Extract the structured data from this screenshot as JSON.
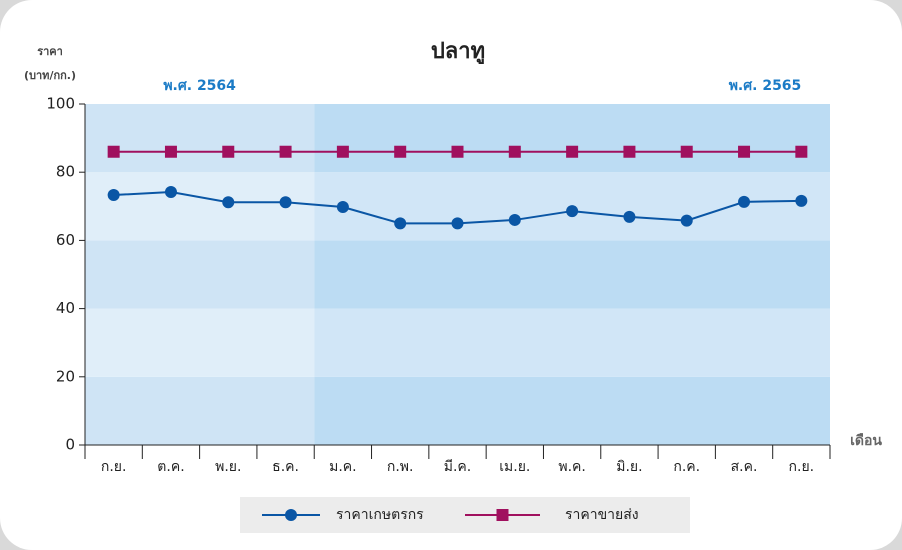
{
  "chart_data": {
    "type": "line",
    "title": "ปลาทู",
    "y_label": [
      "ราคา",
      "(บาท/กก.)"
    ],
    "x_label": "เดือน",
    "annotations": [
      "พ.ศ. 2564",
      "พ.ศ. 2565"
    ],
    "categories": [
      "ก.ย.",
      "ต.ค.",
      "พ.ย.",
      "ธ.ค.",
      "ม.ค.",
      "ก.พ.",
      "มี.ค.",
      "เม.ย.",
      "พ.ค.",
      "มิ.ย.",
      "ก.ค.",
      "ส.ค.",
      "ก.ย."
    ],
    "series": [
      {
        "name": "ราคาเกษตรกร",
        "color": "#0a56a5",
        "marker": "circle",
        "values": [
          73.3,
          74.2,
          71.2,
          71.2,
          69.8,
          65,
          65,
          66,
          68.6,
          66.9,
          65.8,
          71.3,
          71.6
        ]
      },
      {
        "name": "ราคาขายส่ง",
        "color": "#a0105e",
        "marker": "square",
        "values": [
          86,
          86,
          86,
          86,
          86,
          86,
          86,
          86,
          86,
          86,
          86,
          86,
          86
        ]
      }
    ],
    "ylim": [
      0,
      100
    ],
    "yticks": [
      0,
      20,
      40,
      60,
      80,
      100
    ],
    "legend": "bottom"
  }
}
